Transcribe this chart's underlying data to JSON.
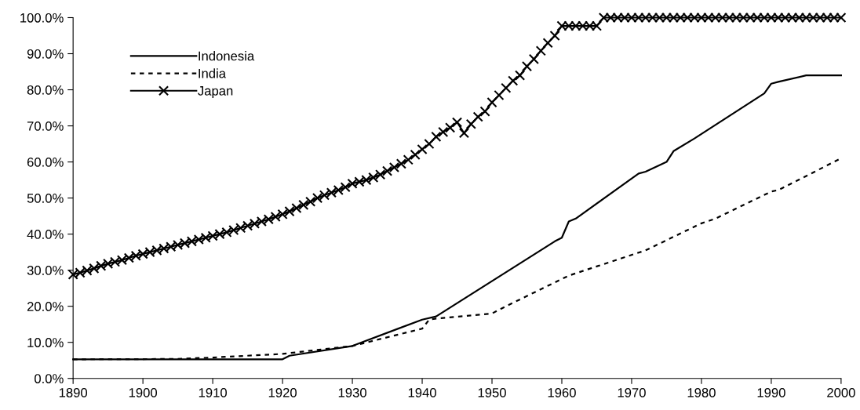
{
  "chart_data": {
    "type": "line",
    "xlim": [
      1890,
      2000
    ],
    "xticks": [
      1890,
      1900,
      1910,
      1920,
      1930,
      1940,
      1950,
      1960,
      1970,
      1980,
      1990,
      2000
    ],
    "ylim": [
      0,
      100
    ],
    "yticks": [
      {
        "value": 0,
        "label": "0.0%"
      },
      {
        "value": 10,
        "label": "10.0%"
      },
      {
        "value": 20,
        "label": "20.0%"
      },
      {
        "value": 30,
        "label": "30.0%"
      },
      {
        "value": 40,
        "label": "40.0%"
      },
      {
        "value": 50,
        "label": "50.0%"
      },
      {
        "value": 60,
        "label": "60.0%"
      },
      {
        "value": 70,
        "label": "70.0%"
      },
      {
        "value": 80,
        "label": "80.0%"
      },
      {
        "value": 90,
        "label": "90.0%"
      },
      {
        "value": 100,
        "label": "100.0%"
      }
    ],
    "grid": false,
    "legend": "top left",
    "series": [
      {
        "name": "Indonesia",
        "color": "#000000",
        "line_style": "solid",
        "marker": "none",
        "x": [
          1890,
          1920,
          1921,
          1930,
          1940,
          1942,
          1959,
          1960,
          1961,
          1962,
          1971,
          1972,
          1975,
          1976,
          1979,
          1989,
          1990,
          1991,
          1995,
          2000
        ],
        "values": [
          5.3,
          5.3,
          6.3,
          9.0,
          16.3,
          17.2,
          38.0,
          39.0,
          43.5,
          44.3,
          56.8,
          57.3,
          60.0,
          63.0,
          66.5,
          79.0,
          81.7,
          82.2,
          84.0,
          84.0
        ]
      },
      {
        "name": "India",
        "color": "#000000",
        "line_style": "dotted",
        "marker": "none",
        "x": [
          1890,
          1905,
          1910,
          1920,
          1930,
          1940,
          1941,
          1942,
          1950,
          1952,
          1961,
          1972,
          1980,
          1982,
          1990,
          1991,
          2000
        ],
        "values": [
          5.3,
          5.4,
          5.8,
          6.8,
          9.0,
          13.8,
          16.3,
          16.6,
          18.0,
          20.0,
          28.5,
          35.5,
          43.0,
          44.3,
          51.8,
          52.2,
          61.0
        ]
      },
      {
        "name": "Japan",
        "color": "#000000",
        "line_style": "solid",
        "marker": "cross",
        "x": [
          1890,
          1891,
          1892,
          1893,
          1894,
          1895,
          1896,
          1897,
          1898,
          1899,
          1900,
          1901,
          1902,
          1903,
          1904,
          1905,
          1906,
          1907,
          1908,
          1909,
          1910,
          1911,
          1912,
          1913,
          1914,
          1915,
          1916,
          1917,
          1918,
          1919,
          1920,
          1921,
          1922,
          1923,
          1924,
          1925,
          1926,
          1927,
          1928,
          1929,
          1930,
          1931,
          1932,
          1933,
          1934,
          1935,
          1936,
          1937,
          1938,
          1939,
          1940,
          1941,
          1942,
          1943,
          1944,
          1945,
          1946,
          1947,
          1948,
          1949,
          1950,
          1951,
          1952,
          1953,
          1954,
          1955,
          1956,
          1957,
          1958,
          1959,
          1960,
          1961,
          1962,
          1963,
          1964,
          1965,
          1966,
          1967,
          1968,
          1969,
          1970,
          1971,
          1972,
          1973,
          1974,
          1975,
          1976,
          1977,
          1978,
          1979,
          1980,
          1981,
          1982,
          1983,
          1984,
          1985,
          1986,
          1987,
          1988,
          1989,
          1990,
          1991,
          1992,
          1993,
          1994,
          1995,
          1996,
          1997,
          1998,
          1999,
          2000
        ],
        "values": [
          28.8,
          29.3,
          29.9,
          30.5,
          31.2,
          31.8,
          32.3,
          32.8,
          33.4,
          34.0,
          34.5,
          35.0,
          35.5,
          36.0,
          36.5,
          37.0,
          37.5,
          38.0,
          38.5,
          39.0,
          39.5,
          40.0,
          40.5,
          41.1,
          41.7,
          42.3,
          42.9,
          43.5,
          44.1,
          44.8,
          45.5,
          46.3,
          47.2,
          48.1,
          49.0,
          50.0,
          50.8,
          51.5,
          52.2,
          53.0,
          54.0,
          54.5,
          55.0,
          55.7,
          56.5,
          57.5,
          58.5,
          59.5,
          60.6,
          62.0,
          63.5,
          65.0,
          67.0,
          68.3,
          69.5,
          71.0,
          68.0,
          70.5,
          72.5,
          74.0,
          76.5,
          78.5,
          80.5,
          82.5,
          84.0,
          86.5,
          88.5,
          90.8,
          93.0,
          95.0,
          97.7,
          97.7,
          97.7,
          97.7,
          97.7,
          97.7,
          100,
          100,
          100,
          100,
          100,
          100,
          100,
          100,
          100,
          100,
          100,
          100,
          100,
          100,
          100,
          100,
          100,
          100,
          100,
          100,
          100,
          100,
          100,
          100,
          100,
          100,
          100,
          100,
          100,
          100,
          100,
          100,
          100,
          100,
          100
        ]
      }
    ]
  }
}
